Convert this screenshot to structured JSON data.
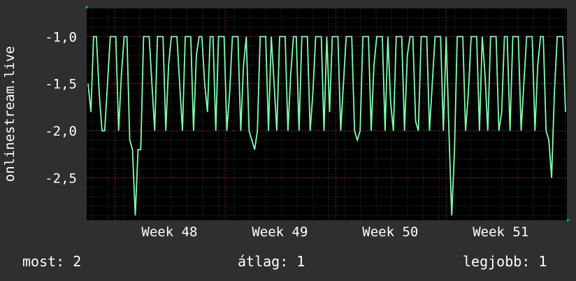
{
  "chart_data": {
    "type": "line",
    "ylabel": "onlinestream.live",
    "yticks": [
      "-1,0",
      "-1,5",
      "-2,0",
      "-2,5"
    ],
    "ytick_values": [
      -1.0,
      -1.5,
      -2.0,
      -2.5
    ],
    "ylim": [
      -2.95,
      -0.7
    ],
    "xticks": [
      "Week 48",
      "Week 49",
      "Week 50",
      "Week 51"
    ],
    "xtick_values": [
      15,
      35,
      55,
      75
    ],
    "xlim": [
      0,
      87
    ],
    "grid": true,
    "colors": {
      "line": "#80ffb0",
      "grid": "#7a2020",
      "plot_bg": "#000000",
      "page_bg": "#2f2f2f",
      "axis_arrow": "#00cc00"
    },
    "series": [
      {
        "values": [
          -1.5,
          -1.8,
          -1.0,
          -1.0,
          -1.6,
          -2.0,
          -2.0,
          -1.5,
          -1.0,
          -1.0,
          -1.0,
          -2.0,
          -1.4,
          -1.0,
          -1.0,
          -2.1,
          -2.2,
          -2.9,
          -2.2,
          -2.2,
          -1.0,
          -1.0,
          -1.0,
          -1.5,
          -2.0,
          -1.0,
          -1.0,
          -1.0,
          -2.0,
          -1.3,
          -1.0,
          -1.0,
          -1.0,
          -1.5,
          -2.0,
          -1.0,
          -1.0,
          -1.0,
          -2.0,
          -1.2,
          -1.0,
          -1.0,
          -1.5,
          -1.8,
          -1.0,
          -1.0,
          -2.0,
          -1.0,
          -1.0,
          -1.0,
          -2.0,
          -1.6,
          -1.0,
          -1.0,
          -1.0,
          -2.0,
          -1.3,
          -1.0,
          -2.0,
          -2.1,
          -2.2,
          -2.0,
          -1.0,
          -1.0,
          -1.0,
          -2.0,
          -1.0,
          -1.5,
          -2.0,
          -1.0,
          -1.0,
          -1.0,
          -2.0,
          -1.4,
          -1.0,
          -1.0,
          -2.0,
          -1.0,
          -1.0,
          -1.0,
          -2.0,
          -1.6,
          -1.0,
          -1.0,
          -1.0,
          -2.0,
          -1.0,
          -1.8,
          -1.0,
          -1.0,
          -1.0,
          -2.0,
          -1.5,
          -1.0,
          -1.0,
          -1.0,
          -2.0,
          -2.1,
          -2.0,
          -1.0,
          -1.0,
          -1.0,
          -2.0,
          -1.3,
          -1.0,
          -1.0,
          -1.0,
          -2.0,
          -1.0,
          -1.7,
          -2.0,
          -1.0,
          -1.0,
          -1.0,
          -2.0,
          -1.2,
          -1.0,
          -1.0,
          -1.9,
          -2.0,
          -1.0,
          -1.0,
          -1.0,
          -2.0,
          -1.5,
          -1.0,
          -1.0,
          -1.0,
          -2.0,
          -1.0,
          -2.0,
          -2.9,
          -2.2,
          -1.0,
          -1.0,
          -1.0,
          -2.0,
          -1.6,
          -1.0,
          -1.0,
          -1.0,
          -2.0,
          -1.0,
          -1.4,
          -2.0,
          -1.0,
          -1.0,
          -1.0,
          -2.0,
          -1.8,
          -1.0,
          -1.0,
          -2.0,
          -1.0,
          -1.0,
          -1.0,
          -2.0,
          -1.5,
          -1.0,
          -1.0,
          -1.0,
          -2.0,
          -1.3,
          -1.0,
          -1.0,
          -2.0,
          -2.1,
          -2.5,
          -1.6,
          -1.0,
          -1.0,
          -1.0,
          -1.8
        ]
      }
    ]
  },
  "footer": {
    "most": "most: 2",
    "atlag": "átlag: 1",
    "legjobb": "legjobb: 1"
  }
}
